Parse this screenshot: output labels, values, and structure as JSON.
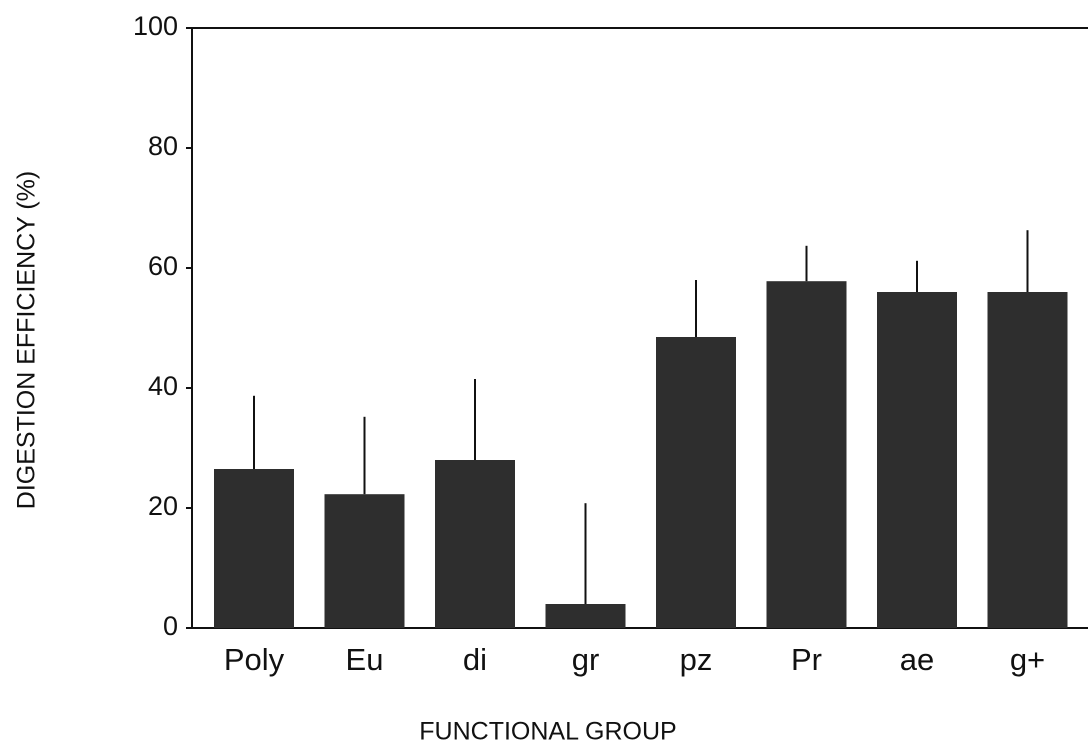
{
  "chart_data": {
    "type": "bar",
    "x_label": "FUNCTIONAL GROUP",
    "y_label": "DIGESTION EFFICIENCY (%)",
    "categories": [
      "Poly",
      "Eu",
      "di",
      "gr",
      "pz",
      "Pr",
      "ae",
      "g+"
    ],
    "values": [
      26.5,
      22.3,
      28,
      4,
      48.5,
      57.8,
      56,
      56
    ],
    "errors": [
      12.2,
      12.9,
      13.5,
      16.8,
      9.5,
      5.9,
      5.2,
      10.3
    ],
    "color": "#2e2e2e",
    "ylim": [
      0,
      100
    ],
    "yticks": [
      0,
      20,
      40,
      60,
      80,
      100
    ]
  }
}
